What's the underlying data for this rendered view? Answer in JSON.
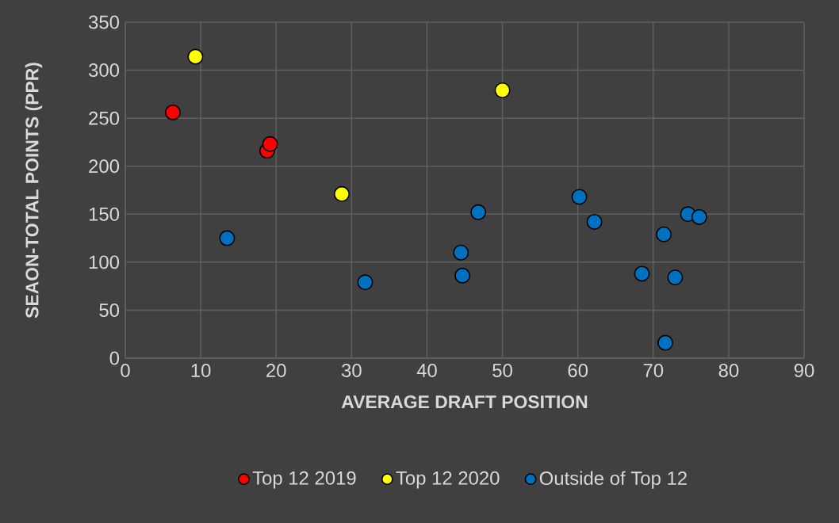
{
  "chart_data": {
    "type": "scatter",
    "xlabel": "AVERAGE DRAFT POSITION",
    "ylabel": "SEAON-TOTAL POINTS (PPR)",
    "xlim": [
      0,
      90
    ],
    "ylim": [
      0,
      350
    ],
    "xticks": [
      0,
      10,
      20,
      30,
      40,
      50,
      60,
      70,
      80,
      90
    ],
    "yticks": [
      0,
      50,
      100,
      150,
      200,
      250,
      300,
      350
    ],
    "grid": true,
    "legend": "bottom",
    "marker": "circle",
    "series": [
      {
        "name": "Top 12 2019",
        "color": "#ff0000",
        "x": [
          6.3,
          18.8,
          19.2
        ],
        "values": [
          256,
          216,
          223
        ]
      },
      {
        "name": "Top 12 2020",
        "color": "#ffff00",
        "x": [
          9.3,
          28.7,
          50
        ],
        "values": [
          314,
          171,
          279
        ]
      },
      {
        "name": "Outside of Top 12",
        "color": "#0070c0",
        "x": [
          13.5,
          31.8,
          46.8,
          44.5,
          44.7,
          60.2,
          62.2,
          68.5,
          71.4,
          72.9,
          71.6,
          74.6,
          76.1
        ],
        "values": [
          125,
          79,
          152,
          110,
          86,
          168,
          142,
          88,
          129,
          84,
          16,
          150,
          147
        ]
      }
    ]
  }
}
